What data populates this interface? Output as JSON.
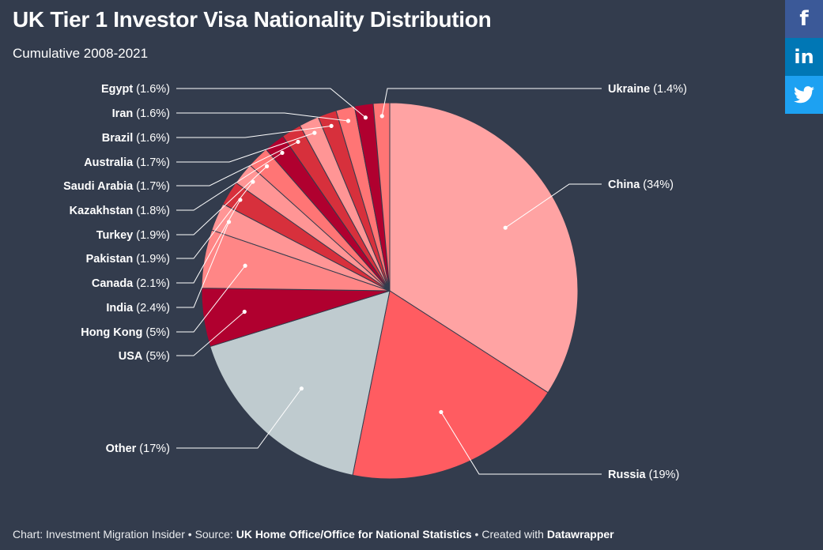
{
  "header": {
    "title": "UK Tier 1 Investor Visa Nationality Distribution",
    "subtitle": "Cumulative 2008-2021"
  },
  "footer": {
    "chart_prefix": "Chart: Investment Migration Insider",
    "source_prefix": "Source:",
    "source": "UK Home Office/Office for National Statistics",
    "created_prefix": "Created with",
    "tool": "Datawrapper",
    "separator": " • "
  },
  "share": {
    "facebook": "f",
    "linkedin": "in"
  },
  "chart_data": {
    "type": "pie",
    "title": "UK Tier 1 Investor Visa Nationality Distribution",
    "subtitle": "Cumulative 2008-2021",
    "slices": [
      {
        "label": "China",
        "value": 34,
        "display": "34%",
        "color": "#ffa3a3"
      },
      {
        "label": "Russia",
        "value": 19,
        "display": "19%",
        "color": "#ff5c61"
      },
      {
        "label": "Other",
        "value": 17,
        "display": "17%",
        "color": "#bfcbcf"
      },
      {
        "label": "USA",
        "value": 5,
        "display": "5%",
        "color": "#b0002f"
      },
      {
        "label": "Hong Kong",
        "value": 5,
        "display": "5%",
        "color": "#ff8686"
      },
      {
        "label": "India",
        "value": 2.4,
        "display": "2.4%",
        "color": "#ff9595"
      },
      {
        "label": "Canada",
        "value": 2.1,
        "display": "2.1%",
        "color": "#d7303c"
      },
      {
        "label": "Pakistan",
        "value": 1.9,
        "display": "1.9%",
        "color": "#ff9595"
      },
      {
        "label": "Turkey",
        "value": 1.9,
        "display": "1.9%",
        "color": "#ff7575"
      },
      {
        "label": "Kazakhstan",
        "value": 1.8,
        "display": "1.8%",
        "color": "#b0002f"
      },
      {
        "label": "Saudi Arabia",
        "value": 1.7,
        "display": "1.7%",
        "color": "#d7303c"
      },
      {
        "label": "Australia",
        "value": 1.7,
        "display": "1.7%",
        "color": "#ff9595"
      },
      {
        "label": "Brazil",
        "value": 1.6,
        "display": "1.6%",
        "color": "#d7303c"
      },
      {
        "label": "Iran",
        "value": 1.6,
        "display": "1.6%",
        "color": "#ff7575"
      },
      {
        "label": "Egypt",
        "value": 1.6,
        "display": "1.6%",
        "color": "#b0002f"
      },
      {
        "label": "Ukraine",
        "value": 1.4,
        "display": "1.4%",
        "color": "#ff7575"
      }
    ],
    "start_angle_deg": 0,
    "direction": "clockwise",
    "legend": "none",
    "labels": "outside with leader lines"
  }
}
